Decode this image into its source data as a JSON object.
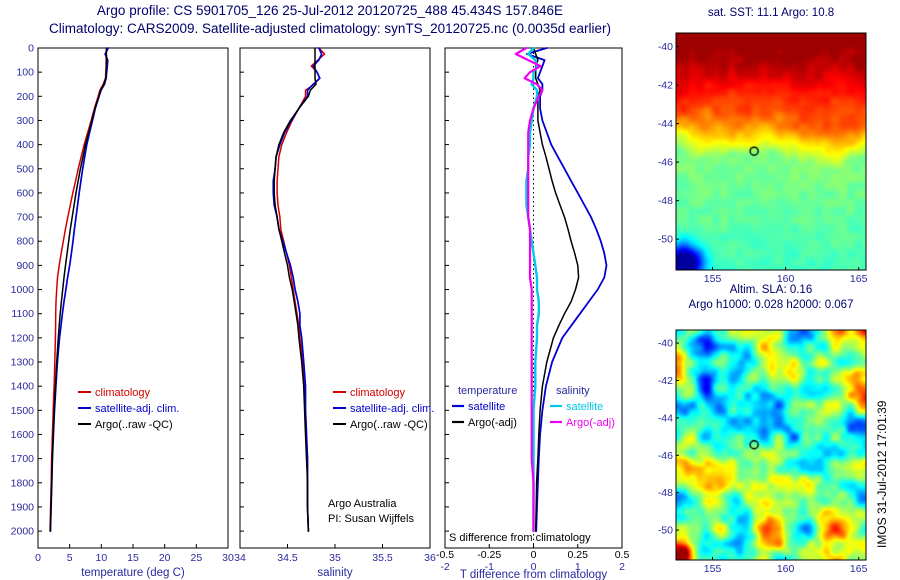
{
  "header": {
    "line1": "Argo profile: CS 5901705_126 25-Jul-2012 20120725_488 45.434S 157.846E",
    "line2": "Climatology: CARS2009. Satellite-adjusted climatology: synTS_20120725.nc (0.0035d earlier)"
  },
  "footer": {
    "stamp": "IMOS 31-Jul-2012 17:01:39"
  },
  "colors": {
    "red": "#d40000",
    "blue": "#0000d2",
    "black": "#000000",
    "cyan": "#00c8e8",
    "magenta": "#f000f0",
    "axis_text": "#2a2a9e",
    "title_text": "#00006b"
  },
  "depths": [
    0,
    25,
    50,
    75,
    100,
    125,
    150,
    175,
    200,
    250,
    300,
    350,
    400,
    450,
    500,
    550,
    600,
    650,
    700,
    750,
    800,
    850,
    900,
    950,
    1000,
    1050,
    1100,
    1150,
    1200,
    1300,
    1400,
    1500,
    1600,
    1700,
    1800,
    1900,
    2000
  ],
  "depth_lim": [
    0,
    2070
  ],
  "depth_ticks": [
    0,
    100,
    200,
    300,
    400,
    500,
    600,
    700,
    800,
    900,
    1000,
    1100,
    1200,
    1300,
    1400,
    1500,
    1600,
    1700,
    1800,
    1900,
    2000
  ],
  "chart_data": [
    {
      "id": "temp",
      "type": "line",
      "xlabel": "temperature (deg C)",
      "xlim": [
        0,
        30
      ],
      "xticks": {
        "values": [
          0,
          5,
          10,
          15,
          20,
          25,
          30
        ],
        "labels": [
          "0",
          "5",
          "10",
          "15",
          "20",
          "25",
          "30"
        ]
      },
      "show_ytick_labels": true,
      "legend": [
        {
          "label": "climatology",
          "color": "#d40000"
        },
        {
          "label": "satellite-adj. clim.",
          "color": "#0000d2"
        },
        {
          "label": "Argo(..raw -QC)",
          "color": "#000000"
        }
      ],
      "series": [
        {
          "name": "climatology",
          "color": "#d40000",
          "width": 1.5,
          "values": [
            10.8,
            10.75,
            10.75,
            10.75,
            10.7,
            10.65,
            10.3,
            9.75,
            9.5,
            8.9,
            8.4,
            7.85,
            7.3,
            6.82,
            6.35,
            5.93,
            5.5,
            5.1,
            4.7,
            4.32,
            4.0,
            3.67,
            3.35,
            3.08,
            2.95,
            2.85,
            2.8,
            2.78,
            2.75,
            2.65,
            2.55,
            2.4,
            2.28,
            2.15,
            2.08,
            1.99,
            1.9
          ]
        },
        {
          "name": "satellite-adj. clim.",
          "color": "#0000d2",
          "width": 1.7,
          "values": [
            11.1,
            10.6,
            11.0,
            10.95,
            10.85,
            10.75,
            10.5,
            9.95,
            9.65,
            9.05,
            8.6,
            8.15,
            7.7,
            7.37,
            7.05,
            6.78,
            6.5,
            6.25,
            6.0,
            5.74,
            5.52,
            5.27,
            5.0,
            4.68,
            4.4,
            4.1,
            3.85,
            3.63,
            3.4,
            3.07,
            2.83,
            2.6,
            2.43,
            2.27,
            2.18,
            2.07,
            1.96
          ]
        },
        {
          "name": "Argo(..raw -QC)",
          "color": "#000000",
          "width": 1.5,
          "values": [
            10.8,
            10.8,
            10.85,
            10.8,
            10.75,
            10.7,
            10.4,
            9.9,
            9.6,
            9.0,
            8.5,
            8.0,
            7.5,
            7.1,
            6.7,
            6.35,
            6.0,
            5.7,
            5.4,
            5.1,
            4.85,
            4.6,
            4.35,
            4.1,
            3.9,
            3.7,
            3.5,
            3.35,
            3.2,
            2.95,
            2.75,
            2.55,
            2.4,
            2.25,
            2.15,
            2.05,
            1.95
          ]
        }
      ]
    },
    {
      "id": "sal",
      "type": "line",
      "xlabel": "salinity",
      "xlim": [
        34,
        36
      ],
      "xticks": {
        "values": [
          34,
          34.5,
          35,
          35.5,
          36
        ],
        "labels": [
          "34",
          "34.5",
          "35",
          "35.5",
          "36"
        ]
      },
      "show_ytick_labels": false,
      "notes": [
        "Argo Australia",
        "PI: Susan Wijffels"
      ],
      "legend": [
        {
          "label": "climatology",
          "color": "#d40000"
        },
        {
          "label": "satellite-adj. clim.",
          "color": "#0000d2"
        },
        {
          "label": "Argo(..raw -QC)",
          "color": "#000000"
        }
      ],
      "series": [
        {
          "name": "climatology S",
          "color": "#d40000",
          "width": 1.5,
          "values": [
            34.83,
            34.89,
            34.82,
            34.75,
            34.81,
            34.84,
            34.78,
            34.69,
            34.69,
            34.62,
            34.55,
            34.49,
            34.44,
            34.41,
            34.4,
            34.39,
            34.39,
            34.4,
            34.42,
            34.43,
            34.46,
            34.49,
            34.52,
            34.54,
            34.56,
            34.58,
            34.6,
            34.62,
            34.63,
            34.66,
            34.68,
            34.69,
            34.7,
            34.71,
            34.71,
            34.71,
            34.72
          ]
        },
        {
          "name": "satellite-adj. clim. S",
          "color": "#0000d2",
          "width": 1.7,
          "values": [
            34.83,
            34.86,
            34.83,
            34.77,
            34.81,
            34.84,
            34.77,
            34.71,
            34.71,
            34.62,
            34.54,
            34.47,
            34.42,
            34.38,
            34.37,
            34.35,
            34.35,
            34.36,
            34.39,
            34.41,
            34.45,
            34.49,
            34.53,
            34.56,
            34.58,
            34.61,
            34.63,
            34.63,
            34.65,
            34.67,
            34.69,
            34.69,
            34.7,
            34.71,
            34.71,
            34.71,
            34.72
          ]
        },
        {
          "name": "Argo raw S",
          "color": "#000000",
          "width": 1.5,
          "values": [
            34.79,
            34.79,
            34.79,
            34.79,
            34.79,
            34.79,
            34.8,
            34.74,
            34.72,
            34.62,
            34.53,
            34.46,
            34.41,
            34.38,
            34.37,
            34.36,
            34.36,
            34.37,
            34.39,
            34.41,
            34.44,
            34.47,
            34.5,
            34.52,
            34.55,
            34.57,
            34.59,
            34.61,
            34.62,
            34.65,
            34.67,
            34.68,
            34.69,
            34.7,
            34.71,
            34.71,
            34.72
          ]
        }
      ]
    },
    {
      "id": "diff",
      "type": "line",
      "xlabel": "T difference from climatology",
      "note": "S difference from climatology",
      "xlim": [
        -2,
        2
      ],
      "xticks_t": {
        "values": [
          -2,
          -1,
          0,
          1,
          2
        ],
        "labels": [
          "-2",
          "-1",
          "0",
          "1",
          "2"
        ]
      },
      "xticks_s": {
        "labels": [
          "-0.5",
          "-0.25",
          "0",
          "0.25",
          "0.5"
        ]
      },
      "zero_line": true,
      "s_scale": 4,
      "show_ytick_labels": false,
      "legend_groups": [
        {
          "header": "temperature",
          "entries": [
            {
              "label": "satellite",
              "color": "#0000d2"
            },
            {
              "label": "Argo(-adj)",
              "color": "#000000"
            }
          ]
        },
        {
          "header": "salinity",
          "entries": [
            {
              "label": "satellite",
              "color": "#00c8e8"
            },
            {
              "label": "Argo(-adj)",
              "color": "#f000f0"
            }
          ]
        }
      ],
      "series": [
        {
          "name": "satellite T diff",
          "color": "#0000d2",
          "axis": "T",
          "width": 1.8,
          "values": [
            0.3,
            -0.15,
            0.25,
            0.2,
            0.15,
            0.1,
            0.2,
            0.2,
            0.15,
            0.15,
            0.2,
            0.3,
            0.4,
            0.55,
            0.7,
            0.85,
            1.0,
            1.15,
            1.3,
            1.42,
            1.52,
            1.6,
            1.65,
            1.6,
            1.45,
            1.25,
            1.05,
            0.85,
            0.65,
            0.42,
            0.28,
            0.2,
            0.15,
            0.12,
            0.1,
            0.08,
            0.06
          ]
        },
        {
          "name": "Argo T diff",
          "color": "#000000",
          "axis": "T",
          "width": 1.5,
          "values": [
            0.0,
            0.05,
            0.1,
            0.05,
            0.05,
            0.05,
            0.1,
            0.15,
            0.1,
            0.1,
            0.1,
            0.15,
            0.2,
            0.28,
            0.35,
            0.42,
            0.5,
            0.6,
            0.7,
            0.78,
            0.85,
            0.93,
            1.0,
            1.02,
            0.95,
            0.85,
            0.7,
            0.57,
            0.45,
            0.3,
            0.2,
            0.15,
            0.12,
            0.1,
            0.07,
            0.06,
            0.05
          ]
        },
        {
          "name": "satellite S diff",
          "color": "#00c8e8",
          "axis": "S",
          "width": 2.4,
          "values": [
            0.0,
            -0.03,
            0.01,
            0.02,
            0.0,
            0.0,
            -0.01,
            0.02,
            0.02,
            0.0,
            -0.01,
            -0.02,
            -0.02,
            -0.03,
            -0.03,
            -0.04,
            -0.04,
            -0.04,
            -0.03,
            -0.02,
            -0.01,
            0.0,
            0.01,
            0.02,
            0.02,
            0.03,
            0.03,
            0.02,
            0.02,
            0.01,
            0.01,
            0.0,
            0.0,
            0.0,
            0.0,
            0.0,
            0.0
          ]
        },
        {
          "name": "Argo S diff",
          "color": "#f000f0",
          "axis": "S",
          "width": 2.2,
          "values": [
            -0.04,
            -0.1,
            -0.03,
            0.04,
            -0.02,
            -0.05,
            0.02,
            0.05,
            0.03,
            0.0,
            -0.02,
            -0.03,
            -0.03,
            -0.03,
            -0.03,
            -0.03,
            -0.03,
            -0.03,
            -0.03,
            -0.02,
            -0.02,
            -0.02,
            -0.02,
            -0.02,
            -0.01,
            -0.01,
            -0.01,
            -0.01,
            -0.01,
            -0.01,
            -0.01,
            -0.01,
            -0.01,
            -0.01,
            0.0,
            0.0,
            0.0
          ]
        }
      ]
    },
    {
      "id": "sst",
      "type": "heatmap",
      "title": "sat. SST: 11.1 Argo: 10.8",
      "sst_values": {
        "satellite": 11.1,
        "argo": 10.8
      },
      "lon_range": [
        152.5,
        165.5
      ],
      "lat_range": [
        -39.3,
        -51.6
      ],
      "xticks": [
        155,
        160,
        165
      ],
      "yticks": [
        -40,
        -42,
        -44,
        -46,
        -48,
        -50
      ],
      "marker": {
        "lon": 157.846,
        "lat": -45.434
      }
    },
    {
      "id": "sla",
      "type": "heatmap",
      "title1": "Altim. SLA: 0.16",
      "title2": "Argo h1000: 0.028 h2000: 0.067",
      "sla_values": {
        "altim_sla": 0.16,
        "argo_h1000": 0.028,
        "argo_h2000": 0.067
      },
      "lon_range": [
        152.5,
        165.5
      ],
      "lat_range": [
        -39.3,
        -51.6
      ],
      "xticks": [
        155,
        160,
        165
      ],
      "yticks": [
        -40,
        -42,
        -44,
        -46,
        -48,
        -50
      ],
      "marker": {
        "lon": 157.846,
        "lat": -45.434
      }
    }
  ]
}
